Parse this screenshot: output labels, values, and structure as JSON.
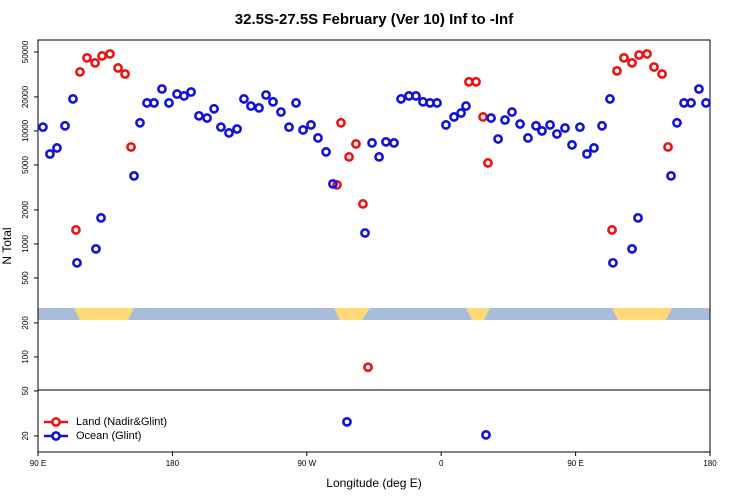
{
  "chart_data": {
    "type": "scatter",
    "title": "32.5S-27.5S February (Ver 10)   Inf to -Inf",
    "x_label": "Longitude (deg E)",
    "y_label": "N Total",
    "xlim": [
      90,
      540
    ],
    "xticks": [
      {
        "value": 90,
        "label": "90 E"
      },
      {
        "value": 180,
        "label": "180"
      },
      {
        "value": 270,
        "label": "90 W"
      },
      {
        "value": 360,
        "label": "0"
      },
      {
        "value": 450,
        "label": "90 E"
      },
      {
        "value": 540,
        "label": "180"
      }
    ],
    "ylim": [
      14.4,
      63800
    ],
    "log_y": true,
    "yticks": [
      20,
      50,
      100,
      200,
      500,
      1000,
      2000,
      5000,
      10000,
      20000,
      50000
    ],
    "legend": "bottom-left",
    "series": [
      {
        "name": "Land (Nadir&Glint)",
        "color": "#ee1111",
        "x": [
          115.4,
          118.1,
          122.8,
          128.2,
          132.9,
          138.2,
          143.6,
          148.3,
          152.3,
          290.2,
          292.9,
          298.3,
          302.9,
          307.6,
          311.0,
          378.6,
          383.3,
          388.0,
          391.3,
          474.4,
          477.7,
          482.4,
          487.8,
          492.5,
          497.8,
          502.5,
          507.9,
          511.9
        ],
        "values": [
          1330,
          33300,
          44300,
          40000,
          46100,
          48000,
          36100,
          31900,
          7210,
          3330,
          11800,
          5890,
          7670,
          2260,
          81,
          27200,
          27200,
          13300,
          5210,
          1330,
          34000,
          44300,
          40000,
          47000,
          48000,
          36800,
          31900,
          7210
        ]
      },
      {
        "name": "Ocean (Glint)",
        "color": "#1111dd",
        "x": [
          93.3,
          98.0,
          102.7,
          108.1,
          113.4,
          116.1,
          128.8,
          132.2,
          154.3,
          158.3,
          163.0,
          167.7,
          173.0,
          177.7,
          183.1,
          187.8,
          192.5,
          197.8,
          203.2,
          207.9,
          212.5,
          217.9,
          223.3,
          227.9,
          232.6,
          238.0,
          242.7,
          247.4,
          252.7,
          258.1,
          262.8,
          267.5,
          272.8,
          277.5,
          282.9,
          287.5,
          296.9,
          309.0,
          313.7,
          318.4,
          323.0,
          328.4,
          333.1,
          338.4,
          343.1,
          347.8,
          352.5,
          357.2,
          363.2,
          368.6,
          373.3,
          376.6,
          390.0,
          393.4,
          398.1,
          402.7,
          407.4,
          412.8,
          418.1,
          423.5,
          427.5,
          432.9,
          437.5,
          442.9,
          447.6,
          452.9,
          457.6,
          462.3,
          467.7,
          473.0,
          475.0,
          487.8,
          491.8,
          513.9,
          517.9,
          522.6,
          527.3,
          532.6,
          537.3
        ],
        "values": [
          10800,
          6250,
          7070,
          11100,
          19200,
          680,
          904,
          1700,
          4000,
          11800,
          17700,
          17700,
          23500,
          17700,
          21200,
          20400,
          22100,
          13600,
          13000,
          15700,
          10800,
          9600,
          10400,
          19200,
          16600,
          16000,
          20800,
          18100,
          14700,
          10800,
          17700,
          10200,
          11300,
          8670,
          6520,
          3400,
          26.6,
          1250,
          7830,
          5890,
          8000,
          7830,
          19200,
          20400,
          20400,
          18100,
          17700,
          17700,
          11300,
          13300,
          14400,
          16600,
          20.4,
          13000,
          8490,
          12500,
          14700,
          11500,
          8670,
          11100,
          10000,
          11300,
          9400,
          10600,
          7520,
          10800,
          6250,
          7070,
          11100,
          19200,
          680,
          904,
          1700,
          4000,
          11800,
          17700,
          17700,
          23500,
          17700
        ]
      }
    ]
  }
}
